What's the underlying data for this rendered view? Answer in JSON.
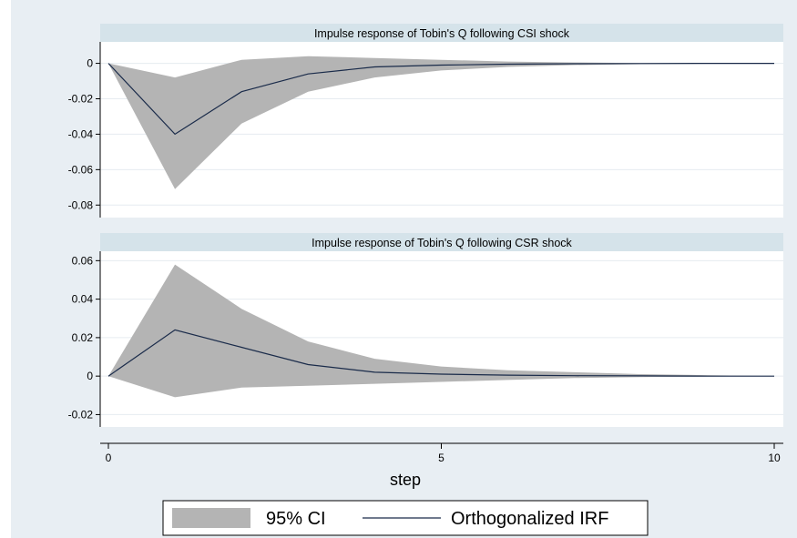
{
  "chart_data": {
    "type": "area",
    "xlabel": "step",
    "x_ticks": [
      0,
      5,
      10
    ],
    "xlim": [
      0,
      10
    ],
    "colors": {
      "band": "#b4b4b4",
      "line": "#1a2b4a",
      "title_bar": "#d5e3ea",
      "plot_bg": "#ffffff",
      "outer_bg": "#e8eef3"
    },
    "legend": {
      "position": "bottom",
      "entries": [
        {
          "label": "95% CI",
          "kind": "band"
        },
        {
          "label": "Orthogonalized IRF",
          "kind": "line"
        }
      ]
    },
    "panels": [
      {
        "title": "Impulse response of Tobin's Q following CSI shock",
        "ylim": [
          -0.085,
          0.008
        ],
        "y_ticks": [
          0,
          -0.02,
          -0.04,
          -0.06,
          -0.08
        ],
        "y_tick_labels": [
          "0",
          "-0.02",
          "-0.04",
          "-0.06",
          "-0.08"
        ],
        "x": [
          0,
          1,
          2,
          3,
          4,
          5,
          6,
          7,
          8,
          9,
          10
        ],
        "irf": [
          0,
          -0.04,
          -0.016,
          -0.006,
          -0.002,
          -0.001,
          -0.0005,
          -0.0002,
          -0.0001,
          0,
          0
        ],
        "lower": [
          0,
          -0.071,
          -0.034,
          -0.016,
          -0.008,
          -0.004,
          -0.002,
          -0.001,
          -0.0005,
          -0.0002,
          0
        ],
        "upper": [
          0,
          -0.008,
          0.002,
          0.004,
          0.003,
          0.002,
          0.001,
          0.0005,
          0.0002,
          0.0001,
          0
        ]
      },
      {
        "title": "Impulse response of Tobin's Q following CSR shock",
        "ylim": [
          -0.025,
          0.063
        ],
        "y_ticks": [
          0.06,
          0.04,
          0.02,
          0,
          -0.02
        ],
        "y_tick_labels": [
          "0.06",
          "0.04",
          "0.02",
          "0",
          "-0.02"
        ],
        "x": [
          0,
          1,
          2,
          3,
          4,
          5,
          6,
          7,
          8,
          9,
          10
        ],
        "irf": [
          0,
          0.024,
          0.015,
          0.006,
          0.002,
          0.001,
          0.0005,
          0.0002,
          0.0001,
          0,
          0
        ],
        "lower": [
          0,
          -0.011,
          -0.006,
          -0.005,
          -0.004,
          -0.003,
          -0.002,
          -0.001,
          -0.0005,
          -0.0002,
          0
        ],
        "upper": [
          0,
          0.058,
          0.035,
          0.018,
          0.009,
          0.005,
          0.003,
          0.002,
          0.001,
          0.0005,
          0
        ]
      }
    ]
  }
}
